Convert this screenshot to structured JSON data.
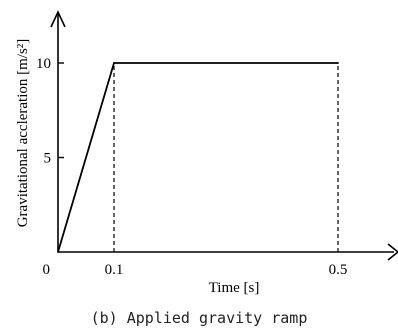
{
  "chart_data": {
    "type": "line",
    "xlabel": "Time [s]",
    "ylabel": "Gravitational accleration [m/s²]",
    "caption": "(b) Applied gravity ramp",
    "x": [
      0,
      0.1,
      0.5
    ],
    "series": [
      {
        "values": [
          0,
          10,
          10
        ]
      }
    ],
    "x_ticks": [
      {
        "value": 0,
        "label": "0"
      },
      {
        "value": 0.1,
        "label": "0.1"
      },
      {
        "value": 0.5,
        "label": "0.5"
      }
    ],
    "y_ticks": [
      {
        "value": 5,
        "label": "5"
      },
      {
        "value": 10,
        "label": "10"
      }
    ],
    "xlim": [
      0,
      0.55
    ],
    "ylim": [
      0,
      12.6
    ],
    "reference_lines": [
      {
        "x": 0.1,
        "from_y": 0,
        "to_y": 10,
        "style": "dashed"
      },
      {
        "x": 0.5,
        "from_y": 0,
        "to_y": 10,
        "style": "dashed"
      }
    ],
    "grid": false,
    "colors": {
      "line": "#000000",
      "axes": "#000000"
    }
  }
}
